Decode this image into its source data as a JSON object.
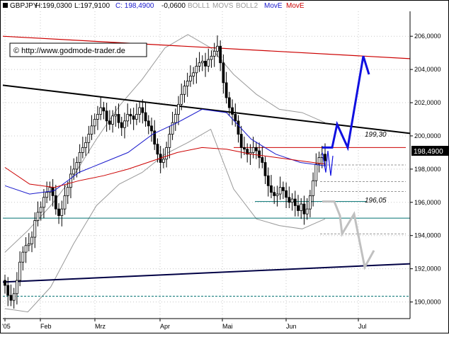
{
  "header": {
    "symbol": "GBPJPY",
    "high": "H:199,0300",
    "low": "L:197,9100",
    "close": "C: 198,4900",
    "change": "-0,0600",
    "ind_boll1": "BOLL1",
    "ind_movs": "MOVS",
    "ind_boll2": "BOLL2",
    "ind_move1": "MovE",
    "ind_move2": "MovE"
  },
  "watermark": "© http://www.godmode-trader.de",
  "price_badge": "198,4900",
  "level_labels": {
    "resistance": "199,30",
    "support": "196,05"
  },
  "colors": {
    "candle": "#000000",
    "sma": "#1a1acc",
    "ema": "#cc0000",
    "bollinger": "#999999",
    "forecast_up": "#1010e0",
    "forecast_down": "#c0c0c0",
    "trend_upper_red": "#cc0000",
    "trend_black": "#000000",
    "trend_lower_navy": "#000044",
    "hline_red": "#cc0000",
    "hline_teal": "#007070",
    "hline_gray": "#999999"
  },
  "chart_data": {
    "type": "candlestick",
    "title": "",
    "x_ticks": [
      "'05",
      "Feb",
      "Mrz",
      "Apr",
      "Mai",
      "Jun",
      "Jul"
    ],
    "y_ticks": [
      "190,0000",
      "192,0000",
      "194,0000",
      "196,0000",
      "198,0000",
      "200,0000",
      "202,0000",
      "204,0000",
      "206,0000"
    ],
    "ylim": [
      189.0,
      207.5
    ],
    "grid": "dotted",
    "horizontal_levels": [
      {
        "value": 199.3,
        "labeled": true,
        "style": "red"
      },
      {
        "value": 196.05,
        "labeled": true,
        "style": "teal"
      },
      {
        "value": 195.05,
        "labeled": false,
        "style": "teal"
      },
      {
        "value": 190.35,
        "labeled": false,
        "style": "teal-dashed"
      },
      {
        "value": 198.25,
        "labeled": false,
        "style": "gray-dashed"
      },
      {
        "value": 197.25,
        "labeled": false,
        "style": "gray-dashed"
      },
      {
        "value": 196.65,
        "labeled": false,
        "style": "gray-dashed"
      },
      {
        "value": 194.1,
        "labeled": false,
        "style": "gray-dashed"
      }
    ],
    "trendlines": [
      {
        "name": "upper-red",
        "x": [
          "'05",
          "Jul+"
        ],
        "y": [
          206.0,
          204.65
        ]
      },
      {
        "name": "black",
        "x": [
          "'05",
          "Jul+"
        ],
        "y": [
          203.05,
          200.15
        ]
      },
      {
        "name": "lower-navy",
        "x": [
          "'05",
          "Jul+"
        ],
        "y": [
          191.2,
          192.3
        ]
      }
    ],
    "close_series": [
      191.0,
      190.4,
      190.1,
      190.5,
      191.3,
      192.4,
      193.0,
      193.4,
      193.5,
      193.9,
      194.9,
      195.4,
      195.7,
      196.3,
      196.6,
      196.9,
      196.4,
      195.6,
      195.2,
      195.6,
      196.4,
      196.9,
      197.7,
      198.0,
      198.4,
      199.0,
      199.3,
      199.6,
      200.1,
      200.6,
      201.0,
      201.3,
      201.7,
      201.5,
      200.9,
      200.7,
      201.2,
      201.3,
      200.8,
      200.5,
      200.9,
      201.3,
      201.2,
      201.0,
      201.3,
      201.7,
      201.4,
      200.9,
      200.6,
      200.3,
      199.5,
      198.9,
      198.4,
      198.6,
      199.3,
      200.1,
      200.8,
      201.3,
      201.9,
      202.5,
      203.0,
      203.3,
      203.6,
      203.8,
      204.2,
      204.4,
      204.5,
      204.2,
      204.6,
      204.8,
      205.1,
      205.4,
      204.4,
      203.2,
      202.3,
      201.7,
      201.3,
      200.9,
      200.1,
      199.3,
      199.2,
      198.9,
      199.0,
      199.3,
      199.1,
      198.7,
      198.4,
      197.6,
      197.0,
      196.6,
      196.4,
      196.5,
      196.9,
      196.7,
      196.3,
      196.0,
      196.2,
      195.8,
      195.5,
      195.9,
      195.3,
      195.6,
      196.4,
      197.3,
      198.3,
      198.7,
      198.9,
      198.5
    ],
    "series": [
      {
        "name": "BOLL1",
        "role": "upper-band",
        "values": [
          193.0,
          194.3,
          195.8,
          197.6,
          199.8,
          201.8,
          203.4,
          205.3,
          206.1,
          205.3,
          203.7,
          202.5,
          201.6,
          201.4,
          200.8
        ]
      },
      {
        "name": "BOLL2",
        "role": "lower-band",
        "values": [
          189.6,
          189.4,
          190.9,
          193.5,
          195.8,
          197.1,
          197.8,
          198.9,
          199.6,
          200.4,
          196.8,
          195.0,
          194.6,
          194.4,
          195.0
        ]
      },
      {
        "name": "MOVS",
        "values": [
          197.0,
          196.5,
          196.7,
          197.8,
          198.4,
          199.0,
          200.1,
          200.8,
          201.6,
          201.4,
          199.8,
          198.9,
          198.4,
          198.2
        ]
      },
      {
        "name": "MovE",
        "values": [
          198.1,
          197.1,
          196.9,
          197.3,
          197.6,
          198.0,
          198.5,
          199.0,
          199.3,
          199.2,
          198.9,
          198.7,
          198.5,
          198.3
        ]
      }
    ],
    "forecast_up": [
      199.3,
      199.3,
      200.7,
      199.3,
      204.8,
      203.7
    ],
    "forecast_down": [
      196.05,
      196.05,
      195.2,
      194.1,
      195.3,
      192.1,
      193.1
    ]
  }
}
